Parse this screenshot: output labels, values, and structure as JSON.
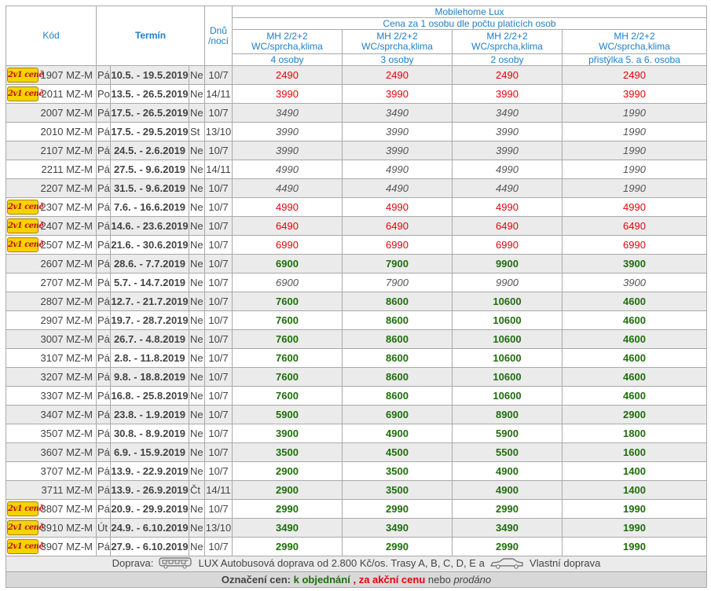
{
  "header": {
    "kod": "Kód",
    "termin": "Termín",
    "dnu": "Dnů",
    "noci": "/nocí",
    "group": "Mobilehome Lux",
    "subgroup": "Cena za 1 osobu dle počtu platících osob",
    "columns": [
      {
        "l1": "MH 2/2+2",
        "l2": "WC/sprcha,klima",
        "l3": "4 osoby"
      },
      {
        "l1": "MH 2/2+2",
        "l2": "WC/sprcha,klima",
        "l3": "3 osoby"
      },
      {
        "l1": "MH 2/2+2",
        "l2": "WC/sprcha,klima",
        "l3": "2 osoby"
      },
      {
        "l1": "MH 2/2+2",
        "l2": "WC/sprcha,klima",
        "l3": "přistýlka 5. a 6. osoba"
      }
    ]
  },
  "badge_text": "2v1 ceně",
  "rows": [
    {
      "badge": true,
      "code": "1907 MZ-M",
      "day": "Pá",
      "term": "10.5. - 19.5.2019",
      "dend": "Ne",
      "nights": "10/7",
      "type": "action",
      "prices": [
        "2490",
        "2490",
        "2490",
        "2490"
      ]
    },
    {
      "badge": true,
      "code": "2011 MZ-M",
      "day": "Po",
      "term": "13.5. - 26.5.2019",
      "dend": "Ne",
      "nights": "14/11",
      "type": "action",
      "prices": [
        "3990",
        "3990",
        "3990",
        "3990"
      ]
    },
    {
      "badge": false,
      "code": "2007 MZ-M",
      "day": "Pá",
      "term": "17.5. - 26.5.2019",
      "dend": "Ne",
      "nights": "10/7",
      "type": "sold",
      "prices": [
        "3490",
        "3490",
        "3490",
        "1990"
      ]
    },
    {
      "badge": false,
      "code": "2010 MZ-M",
      "day": "Pá",
      "term": "17.5. - 29.5.2019",
      "dend": "St",
      "nights": "13/10",
      "type": "sold",
      "prices": [
        "3990",
        "3990",
        "3990",
        "1990"
      ]
    },
    {
      "badge": false,
      "code": "2107 MZ-M",
      "day": "Pá",
      "term": "24.5. - 2.6.2019",
      "dend": "Ne",
      "nights": "10/7",
      "type": "sold",
      "prices": [
        "3990",
        "3990",
        "3990",
        "1990"
      ]
    },
    {
      "badge": false,
      "code": "2211 MZ-M",
      "day": "Pá",
      "term": "27.5. - 9.6.2019",
      "dend": "Ne",
      "nights": "14/11",
      "type": "sold",
      "prices": [
        "4990",
        "4990",
        "4990",
        "1990"
      ]
    },
    {
      "badge": false,
      "code": "2207 MZ-M",
      "day": "Pá",
      "term": "31.5. - 9.6.2019",
      "dend": "Ne",
      "nights": "10/7",
      "type": "sold",
      "prices": [
        "4490",
        "4490",
        "4490",
        "1990"
      ]
    },
    {
      "badge": true,
      "code": "2307 MZ-M",
      "day": "Pá",
      "term": "7.6. - 16.6.2019",
      "dend": "Ne",
      "nights": "10/7",
      "type": "action",
      "prices": [
        "4990",
        "4990",
        "4990",
        "4990"
      ]
    },
    {
      "badge": true,
      "code": "2407 MZ-M",
      "day": "Pá",
      "term": "14.6. - 23.6.2019",
      "dend": "Ne",
      "nights": "10/7",
      "type": "action",
      "prices": [
        "6490",
        "6490",
        "6490",
        "6490"
      ]
    },
    {
      "badge": true,
      "code": "2507 MZ-M",
      "day": "Pá",
      "term": "21.6. - 30.6.2019",
      "dend": "Ne",
      "nights": "10/7",
      "type": "action",
      "prices": [
        "6990",
        "6990",
        "6990",
        "6990"
      ]
    },
    {
      "badge": false,
      "code": "2607 MZ-M",
      "day": "Pá",
      "term": "28.6. - 7.7.2019",
      "dend": "Ne",
      "nights": "10/7",
      "type": "order",
      "prices": [
        "6900",
        "7900",
        "9900",
        "3900"
      ]
    },
    {
      "badge": false,
      "code": "2707 MZ-M",
      "day": "Pá",
      "term": "5.7. - 14.7.2019",
      "dend": "Ne",
      "nights": "10/7",
      "type": "sold",
      "prices": [
        "6900",
        "7900",
        "9900",
        "3900"
      ]
    },
    {
      "badge": false,
      "code": "2807 MZ-M",
      "day": "Pá",
      "term": "12.7. - 21.7.2019",
      "dend": "Ne",
      "nights": "10/7",
      "type": "order",
      "prices": [
        "7600",
        "8600",
        "10600",
        "4600"
      ]
    },
    {
      "badge": false,
      "code": "2907 MZ-M",
      "day": "Pá",
      "term": "19.7. - 28.7.2019",
      "dend": "Ne",
      "nights": "10/7",
      "type": "order",
      "prices": [
        "7600",
        "8600",
        "10600",
        "4600"
      ]
    },
    {
      "badge": false,
      "code": "3007 MZ-M",
      "day": "Pá",
      "term": "26.7. - 4.8.2019",
      "dend": "Ne",
      "nights": "10/7",
      "type": "order",
      "prices": [
        "7600",
        "8600",
        "10600",
        "4600"
      ]
    },
    {
      "badge": false,
      "code": "3107 MZ-M",
      "day": "Pá",
      "term": "2.8. - 11.8.2019",
      "dend": "Ne",
      "nights": "10/7",
      "type": "order",
      "prices": [
        "7600",
        "8600",
        "10600",
        "4600"
      ]
    },
    {
      "badge": false,
      "code": "3207 MZ-M",
      "day": "Pá",
      "term": "9.8. - 18.8.2019",
      "dend": "Ne",
      "nights": "10/7",
      "type": "order",
      "prices": [
        "7600",
        "8600",
        "10600",
        "4600"
      ]
    },
    {
      "badge": false,
      "code": "3307 MZ-M",
      "day": "Pá",
      "term": "16.8. - 25.8.2019",
      "dend": "Ne",
      "nights": "10/7",
      "type": "order",
      "prices": [
        "7600",
        "8600",
        "10600",
        "4600"
      ]
    },
    {
      "badge": false,
      "code": "3407 MZ-M",
      "day": "Pá",
      "term": "23.8. - 1.9.2019",
      "dend": "Ne",
      "nights": "10/7",
      "type": "order",
      "prices": [
        "5900",
        "6900",
        "8900",
        "2900"
      ]
    },
    {
      "badge": false,
      "code": "3507 MZ-M",
      "day": "Pá",
      "term": "30.8. - 8.9.2019",
      "dend": "Ne",
      "nights": "10/7",
      "type": "order",
      "prices": [
        "3900",
        "4900",
        "5900",
        "1800"
      ]
    },
    {
      "badge": false,
      "code": "3607 MZ-M",
      "day": "Pá",
      "term": "6.9. - 15.9.2019",
      "dend": "Ne",
      "nights": "10/7",
      "type": "order",
      "prices": [
        "3500",
        "4500",
        "5500",
        "1600"
      ]
    },
    {
      "badge": false,
      "code": "3707 MZ-M",
      "day": "Pá",
      "term": "13.9. - 22.9.2019",
      "dend": "Ne",
      "nights": "10/7",
      "type": "order",
      "prices": [
        "2900",
        "3500",
        "4900",
        "1400"
      ]
    },
    {
      "badge": false,
      "code": "3711 MZ-M",
      "day": "Pá",
      "term": "13.9. - 26.9.2019",
      "dend": "Čt",
      "nights": "14/11",
      "type": "order",
      "prices": [
        "2900",
        "3500",
        "4900",
        "1400"
      ]
    },
    {
      "badge": true,
      "code": "3807 MZ-M",
      "day": "Pá",
      "term": "20.9. - 29.9.2019",
      "dend": "Ne",
      "nights": "10/7",
      "type": "order",
      "prices": [
        "2990",
        "2990",
        "2990",
        "1990"
      ]
    },
    {
      "badge": true,
      "code": "3910 MZ-M",
      "day": "Út",
      "term": "24.9. - 6.10.2019",
      "dend": "Ne",
      "nights": "13/10",
      "type": "order",
      "prices": [
        "3490",
        "3490",
        "3490",
        "1990"
      ]
    },
    {
      "badge": true,
      "code": "3907 MZ-M",
      "day": "Pá",
      "term": "27.9. - 6.10.2019",
      "dend": "Ne",
      "nights": "10/7",
      "type": "order",
      "prices": [
        "2990",
        "2990",
        "2990",
        "1990"
      ]
    }
  ],
  "footer": {
    "doprava_label": "Doprava:",
    "bus_icon": "bus-icon",
    "bus_text": "LUX Autobusová doprava od 2.800 Kč/os. Trasy A, B, C, D, E a",
    "car_icon": "car-icon",
    "own_text": "Vlastní doprava",
    "legend_label": "Označení cen:",
    "legend_order": "k objednání",
    "legend_sep": ",",
    "legend_action": "za akční cenu",
    "legend_or": "nebo",
    "legend_sold": "prodáno"
  },
  "colors": {
    "header_text": "#1e7ec8",
    "action": "#e8000b",
    "order": "#1f6e0c",
    "sold": "#555555",
    "row_alt": "#ebebeb"
  }
}
